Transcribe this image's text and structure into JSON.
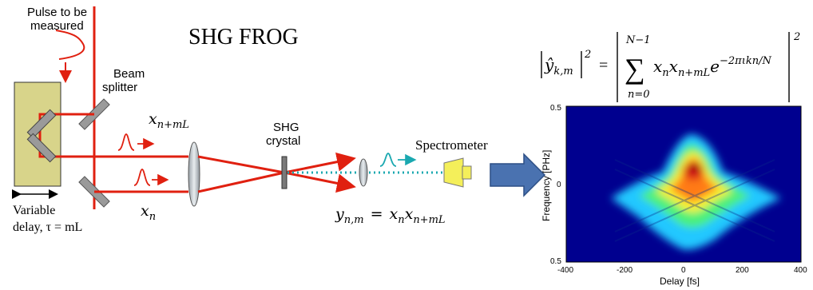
{
  "title": "SHG FROG",
  "labels": {
    "pulse_line1": "Pulse to be",
    "pulse_line2": "measured",
    "splitter_line1": "Beam",
    "splitter_line2": "splitter",
    "shg_line1": "SHG",
    "shg_line2": "crystal",
    "spectrometer": "Spectrometer",
    "variable_line1": "Variable",
    "variable_line2": "delay, τ = mL"
  },
  "math": {
    "x_shifted_base": "x",
    "x_shifted_sub": "n+mL",
    "x_n_base": "x",
    "x_n_sub": "n",
    "y_eq_lhs_base": "y",
    "y_eq_lhs_sub": "n,m",
    "y_eq_eq": "=",
    "y_eq_x1_base": "x",
    "y_eq_x1_sub": "n",
    "y_eq_x2_base": "x",
    "y_eq_x2_sub": "n+mL",
    "formula_lhs_base": "ŷ",
    "formula_lhs_sub": "k,m",
    "formula_lhs_power": "2",
    "formula_eq": "=",
    "formula_sum_upper": "N−1",
    "formula_sum_lower": "n=0",
    "formula_sum_sign": "∑",
    "formula_term1_base": "x",
    "formula_term1_sub": "n",
    "formula_term2_base": "x",
    "formula_term2_sub": "n+mL",
    "formula_exp_base": "e",
    "formula_exp_power": "−2πιkn/N",
    "formula_rhs_power": "2"
  },
  "chart_data": {
    "type": "heatmap",
    "xlabel": "Delay [fs]",
    "ylabel": "Frequency [PHz]",
    "xlim": [
      -400,
      400
    ],
    "ylim": [
      0.5,
      -0.5
    ],
    "x_ticks": [
      "-400",
      "-200",
      "0",
      "200",
      "400"
    ],
    "y_ticks": [
      "0.5",
      "0",
      "0.5"
    ],
    "colormap": "jet",
    "grid": false
  },
  "colors": {
    "beam": "#e02010",
    "shg_beam": "#1aa8b0",
    "delay_stage": "#d8d48a",
    "mirror": "#8a8a8a",
    "spectrometer": "#f4ef5a",
    "arrow": "#4a72b0"
  }
}
